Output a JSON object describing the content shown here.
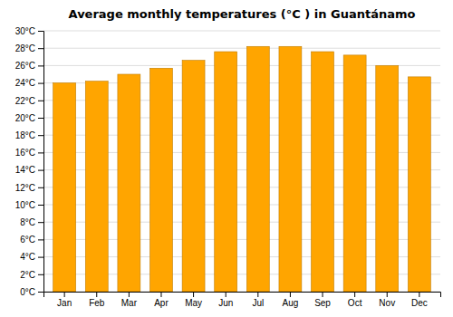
{
  "chart_data": {
    "type": "bar",
    "title": "Average monthly temperatures (°C ) in Guantánamo",
    "categories": [
      "Jan",
      "Feb",
      "Mar",
      "Apr",
      "May",
      "Jun",
      "Jul",
      "Aug",
      "Sep",
      "Oct",
      "Nov",
      "Dec"
    ],
    "values": [
      24.0,
      24.2,
      25.0,
      25.7,
      26.6,
      27.6,
      28.2,
      28.2,
      27.6,
      27.2,
      26.0,
      24.7
    ],
    "color": "#FFA500",
    "ylim": [
      0,
      30
    ],
    "yticks": [
      {
        "value": 0,
        "label": "0°C"
      },
      {
        "value": 2,
        "label": "2°C"
      },
      {
        "value": 4,
        "label": "4°C"
      },
      {
        "value": 6,
        "label": "6°C"
      },
      {
        "value": 8,
        "label": "8°C"
      },
      {
        "value": 10,
        "label": "10°C"
      },
      {
        "value": 12,
        "label": "12°C"
      },
      {
        "value": 14,
        "label": "14°C"
      },
      {
        "value": 16,
        "label": "16°C"
      },
      {
        "value": 18,
        "label": "18°C"
      },
      {
        "value": 20,
        "label": "20°C"
      },
      {
        "value": 22,
        "label": "22°C"
      },
      {
        "value": 24,
        "label": "24°C"
      },
      {
        "value": 26,
        "label": "26°C"
      },
      {
        "value": 28,
        "label": "28°C"
      },
      {
        "value": 30,
        "label": "30°C"
      }
    ],
    "grid": true
  }
}
